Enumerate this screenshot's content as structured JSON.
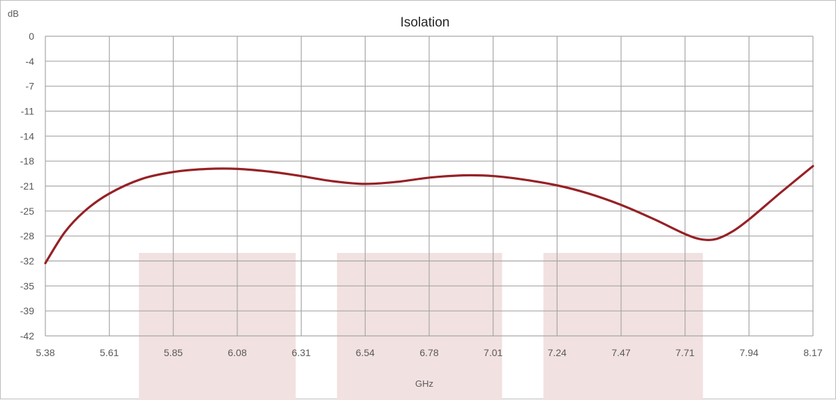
{
  "chart_data": {
    "type": "line",
    "title": "Isolation",
    "ylabel": "dB",
    "xlabel": "GHz",
    "xlim": [
      5.38,
      8.17
    ],
    "ylim": [
      -42,
      0
    ],
    "x_ticks": [
      "5.38",
      "5.61",
      "5.85",
      "6.08",
      "6.31",
      "6.54",
      "6.78",
      "7.01",
      "7.24",
      "7.47",
      "7.71",
      "7.94",
      "8.17"
    ],
    "y_ticks": [
      "0",
      "-4",
      "-7",
      "-11",
      "-14",
      "-18",
      "-21",
      "-25",
      "-28",
      "-32",
      "-35",
      "-39",
      "-42"
    ],
    "grid": true,
    "series": [
      {
        "color": "#962126",
        "x": [
          5.38,
          5.45,
          5.52,
          5.61,
          5.73,
          5.85,
          5.97,
          6.08,
          6.2,
          6.31,
          6.42,
          6.54,
          6.66,
          6.78,
          6.9,
          7.01,
          7.12,
          7.24,
          7.35,
          7.47,
          7.59,
          7.71,
          7.77,
          7.82,
          7.88,
          7.94,
          8.05,
          8.17
        ],
        "y": [
          -31.8,
          -27.5,
          -24.6,
          -22.1,
          -20.0,
          -19.0,
          -18.6,
          -18.6,
          -19.0,
          -19.6,
          -20.3,
          -20.7,
          -20.4,
          -19.8,
          -19.5,
          -19.6,
          -20.1,
          -20.9,
          -22.0,
          -23.6,
          -25.6,
          -27.8,
          -28.5,
          -28.4,
          -27.3,
          -25.6,
          -22.0,
          -18.2
        ]
      }
    ],
    "highlight_bands": [
      {
        "x0": 5.72,
        "x1": 6.29,
        "color": "#f2e1e1"
      },
      {
        "x0": 6.44,
        "x1": 7.04,
        "color": "#f2e1e1"
      },
      {
        "x0": 7.19,
        "x1": 7.77,
        "color": "#f2e1e1"
      }
    ]
  }
}
